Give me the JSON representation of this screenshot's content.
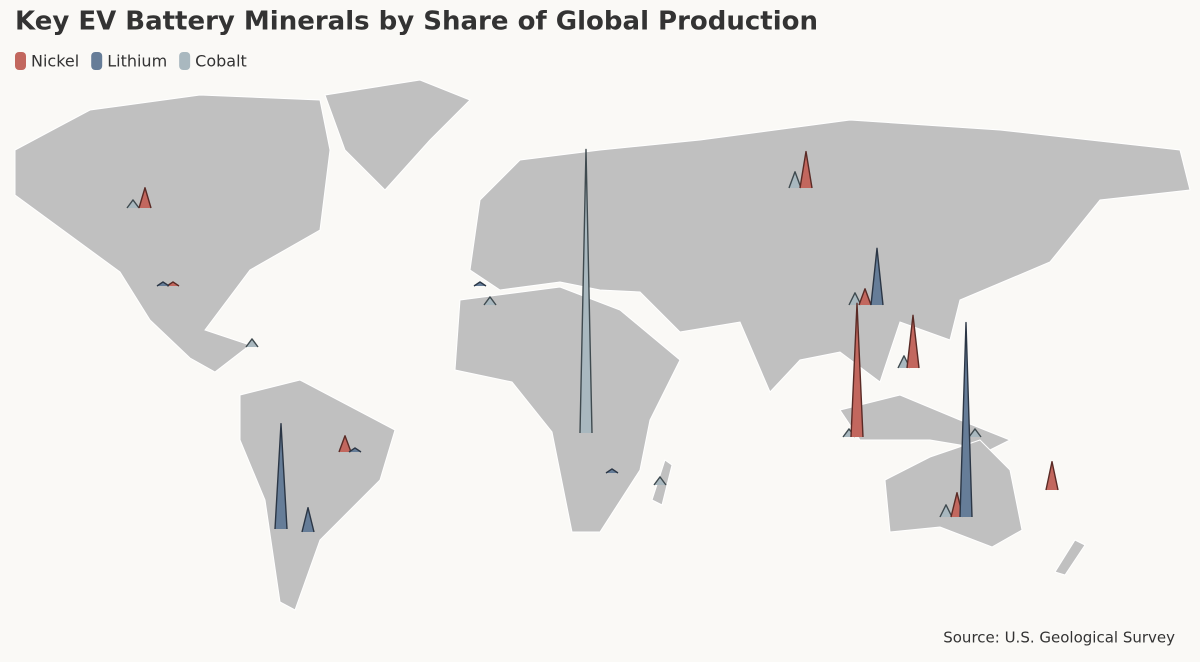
{
  "chart_data": {
    "type": "spike-map",
    "title": "Key EV Battery Minerals by Share of Global Production",
    "source": "Source: U.S. Geological Survey",
    "series": [
      {
        "name": "Nickel",
        "color": "#c2675e",
        "values": [
          5,
          9,
          4,
          33,
          13,
          4,
          6,
          7,
          1
        ]
      },
      {
        "name": "Lithium",
        "color": "#667d98",
        "values": [
          14,
          26,
          6,
          48,
          1,
          1,
          1,
          1
        ]
      },
      {
        "name": "Cobalt",
        "color": "#a9b8bf",
        "values": [
          70,
          4,
          2,
          3,
          3,
          3,
          2,
          2,
          2,
          2,
          2
        ]
      }
    ]
  }
}
